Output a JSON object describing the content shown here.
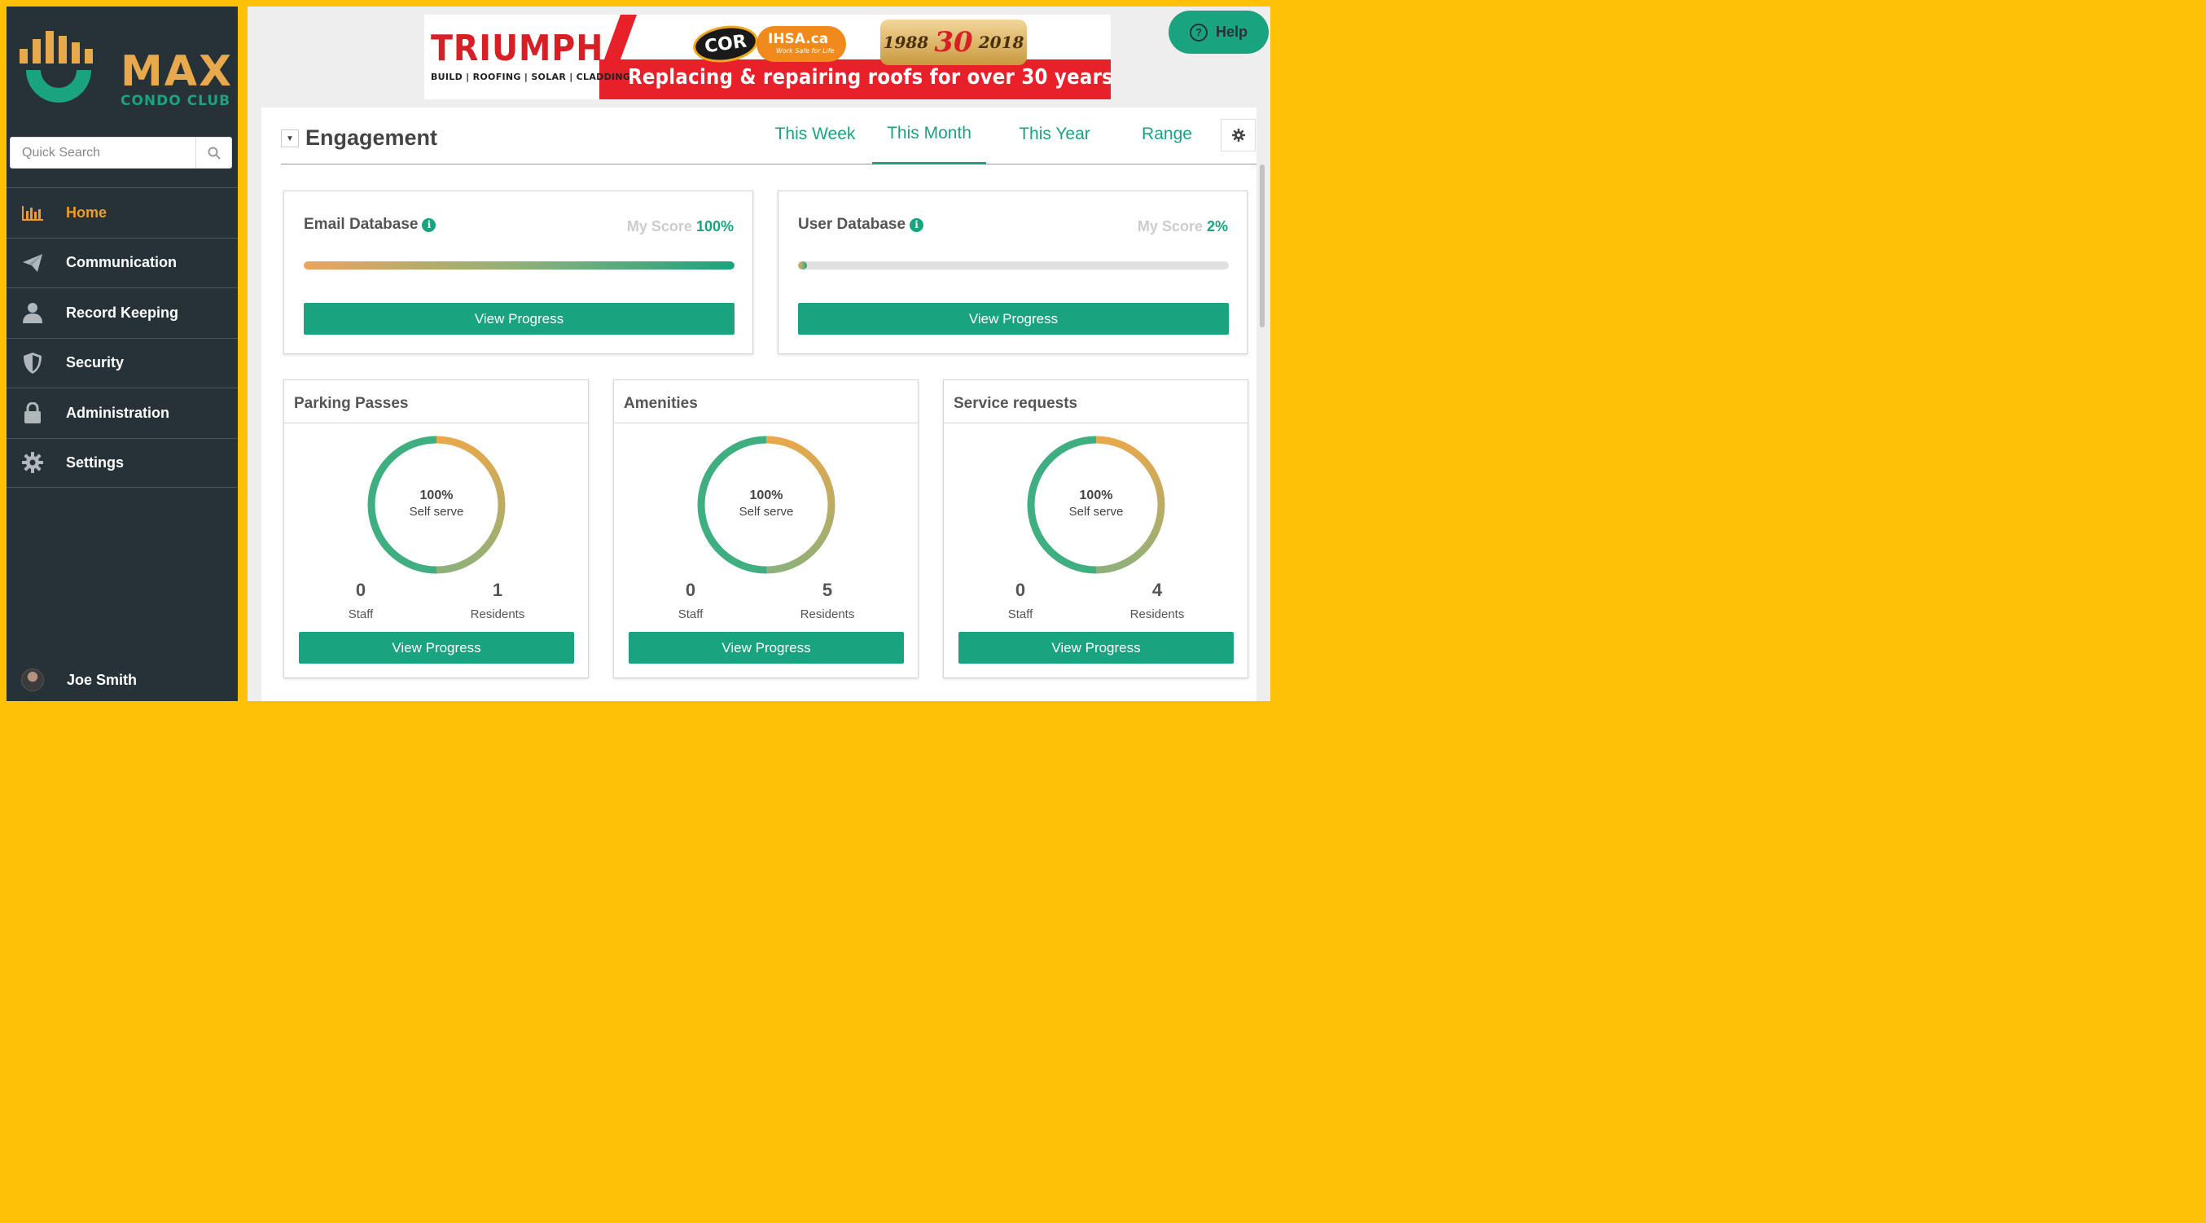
{
  "brand": {
    "name": "MAX",
    "sub": "CONDO CLUB",
    "orange": "#e8a84c",
    "green": "#1aa37f"
  },
  "search": {
    "placeholder": "Quick Search"
  },
  "nav": [
    {
      "label": "Home",
      "icon": "bar-chart-icon",
      "active": true
    },
    {
      "label": "Communication",
      "icon": "paper-plane-icon",
      "active": false
    },
    {
      "label": "Record Keeping",
      "icon": "user-icon",
      "active": false
    },
    {
      "label": "Security",
      "icon": "shield-icon",
      "active": false
    },
    {
      "label": "Administration",
      "icon": "lock-icon",
      "active": false
    },
    {
      "label": "Settings",
      "icon": "gear-icon",
      "active": false
    }
  ],
  "user": {
    "name": "Joe Smith"
  },
  "banner": {
    "brand": "TRIUMPH",
    "services": "BUILD | ROOFING | SOLAR | CLADDING",
    "tagline": "Replacing & repairing roofs for over 30 years",
    "cor": "COR",
    "ihsa": "IHSA.ca",
    "ihsa_sub": "Work Safe for Life",
    "year_start": "1988",
    "years": "30",
    "years_word": "years",
    "year_end": "2018"
  },
  "help": {
    "label": "Help"
  },
  "engagement": {
    "title": "Engagement",
    "tabs": [
      {
        "label": "This Week",
        "active": false
      },
      {
        "label": "This Month",
        "active": true
      },
      {
        "label": "This Year",
        "active": false
      },
      {
        "label": "Range",
        "active": false
      }
    ]
  },
  "databases": [
    {
      "title": "Email Database",
      "score_label": "My Score",
      "score": "100%",
      "progress": 1.0,
      "button": "View Progress"
    },
    {
      "title": "User Database",
      "score_label": "My Score",
      "score": "2%",
      "progress": 0.02,
      "button": "View Progress"
    }
  ],
  "cards": [
    {
      "title": "Parking Passes",
      "pct": "100%",
      "pct_label": "Self serve",
      "staff": "0",
      "staff_label": "Staff",
      "residents": "1",
      "residents_label": "Residents",
      "button": "View Progress"
    },
    {
      "title": "Amenities",
      "pct": "100%",
      "pct_label": "Self serve",
      "staff": "0",
      "staff_label": "Staff",
      "residents": "5",
      "residents_label": "Residents",
      "button": "View Progress"
    },
    {
      "title": "Service requests",
      "pct": "100%",
      "pct_label": "Self serve",
      "staff": "0",
      "staff_label": "Staff",
      "residents": "4",
      "residents_label": "Residents",
      "button": "View Progress"
    }
  ]
}
